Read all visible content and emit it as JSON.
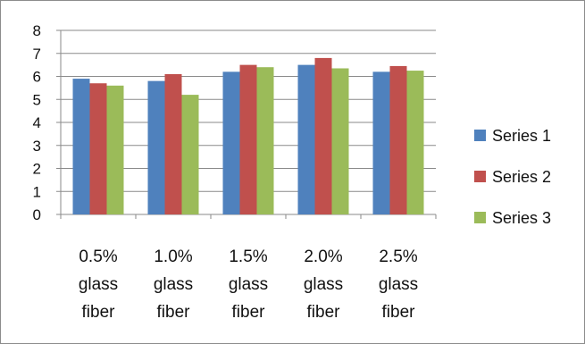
{
  "chart_data": {
    "type": "bar",
    "categories": [
      [
        "0.5%",
        "glass",
        "fiber"
      ],
      [
        "1.0%",
        "glass",
        "fiber"
      ],
      [
        "1.5%",
        "glass",
        "fiber"
      ],
      [
        "2.0%",
        "glass",
        "fiber"
      ],
      [
        "2.5%",
        "glass",
        "fiber"
      ]
    ],
    "series": [
      {
        "name": "Series 1",
        "color": "#4f81bd",
        "values": [
          5.9,
          5.8,
          6.2,
          6.5,
          6.2
        ]
      },
      {
        "name": "Series 2",
        "color": "#c0504d",
        "values": [
          5.7,
          6.1,
          6.5,
          6.8,
          6.45
        ]
      },
      {
        "name": "Series 3",
        "color": "#9bbb59",
        "values": [
          5.6,
          5.2,
          6.4,
          6.35,
          6.25
        ]
      }
    ],
    "ylim": [
      0,
      8
    ],
    "yticks": [
      "0",
      "1",
      "2",
      "3",
      "4",
      "5",
      "6",
      "7",
      "8"
    ],
    "grid": true,
    "legend_position": "right"
  }
}
